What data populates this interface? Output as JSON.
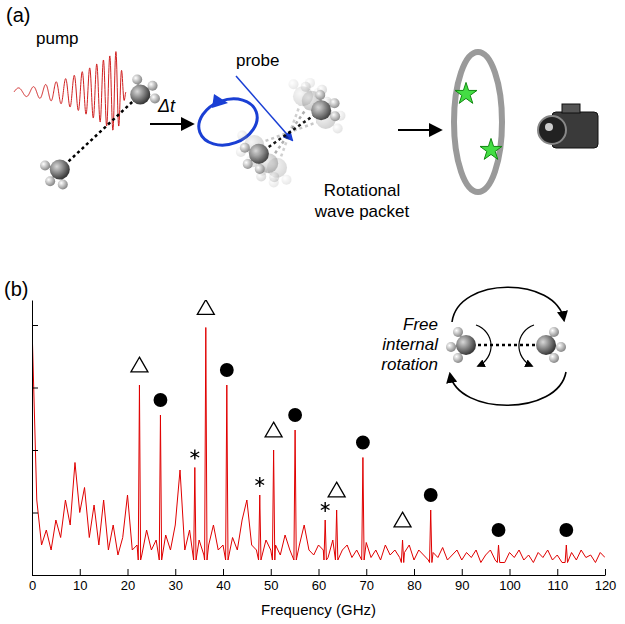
{
  "chart_data": {
    "type": "line",
    "panel_label": "(b)",
    "x_label": "Frequency (GHz)",
    "annotation_lines": [
      "Free",
      "internal",
      "rotation"
    ],
    "color": "#e00000",
    "grid": false,
    "tick_labels": "x",
    "xlim": [
      0,
      120
    ],
    "xticks": [
      0,
      10,
      20,
      30,
      40,
      50,
      60,
      70,
      80,
      90,
      100,
      110,
      120
    ],
    "ylim": [
      0,
      1.1
    ],
    "yticks": [
      0,
      0.25,
      0.5,
      0.75,
      1
    ],
    "x": [
      0,
      1,
      2,
      3,
      4,
      5,
      6,
      7,
      8,
      9,
      10,
      11,
      12,
      13,
      14,
      15,
      16,
      17,
      18,
      19,
      20,
      21,
      22,
      22.25,
      22.5,
      22.75,
      23,
      24,
      25,
      26,
      26.65,
      26.9,
      27.15,
      28,
      29,
      30,
      31,
      32,
      33,
      33.85,
      34.1,
      34.35,
      35,
      36,
      36.15,
      36.4,
      36.65,
      37,
      38,
      39,
      40,
      40.55,
      40.8,
      41.05,
      42,
      43,
      44,
      45,
      46,
      47,
      47.45,
      47.7,
      47.95,
      49,
      50,
      50.35,
      50.6,
      50.85,
      51,
      52,
      53,
      54,
      54.85,
      55.1,
      55.35,
      56,
      57,
      58,
      59,
      60,
      61,
      61.15,
      61.4,
      61.65,
      62,
      63,
      63.55,
      63.8,
      64.05,
      65,
      66,
      67,
      68,
      69.05,
      69.3,
      69.55,
      70,
      71,
      72,
      73,
      74,
      75,
      76,
      77,
      77.35,
      77.6,
      77.85,
      78,
      79,
      80,
      81,
      82,
      83,
      83.25,
      83.5,
      83.75,
      84,
      85,
      86,
      87,
      88,
      89,
      90,
      91,
      92,
      93,
      94,
      95,
      96,
      97,
      97.45,
      97.7,
      97.95,
      99,
      100,
      101,
      102,
      103,
      104,
      105,
      106,
      107,
      108,
      109,
      110,
      111,
      111.65,
      111.9,
      112.15,
      113,
      114,
      115,
      116,
      117,
      118,
      119,
      120
    ],
    "values": [
      1.0,
      0.3,
      0.12,
      0.18,
      0.1,
      0.22,
      0.15,
      0.3,
      0.2,
      0.45,
      0.25,
      0.35,
      0.15,
      0.28,
      0.12,
      0.3,
      0.1,
      0.2,
      0.08,
      0.15,
      0.32,
      0.1,
      0.12,
      0.06,
      0.76,
      0.06,
      0.08,
      0.18,
      0.1,
      0.14,
      0.06,
      0.64,
      0.06,
      0.16,
      0.1,
      0.2,
      0.42,
      0.1,
      0.18,
      0.06,
      0.43,
      0.06,
      0.14,
      0.08,
      0.06,
      0.99,
      0.06,
      0.12,
      0.2,
      0.1,
      0.12,
      0.06,
      0.76,
      0.06,
      0.15,
      0.1,
      0.22,
      0.3,
      0.12,
      0.1,
      0.06,
      0.32,
      0.06,
      0.14,
      0.1,
      0.06,
      0.5,
      0.06,
      0.12,
      0.08,
      0.16,
      0.1,
      0.06,
      0.58,
      0.06,
      0.12,
      0.2,
      0.1,
      0.08,
      0.12,
      0.1,
      0.06,
      0.22,
      0.06,
      0.07,
      0.14,
      0.06,
      0.26,
      0.06,
      0.1,
      0.12,
      0.07,
      0.1,
      0.06,
      0.47,
      0.06,
      0.13,
      0.07,
      0.1,
      0.06,
      0.12,
      0.08,
      0.1,
      0.07,
      0.05,
      0.14,
      0.05,
      0.09,
      0.12,
      0.06,
      0.1,
      0.08,
      0.06,
      0.05,
      0.26,
      0.05,
      0.09,
      0.07,
      0.11,
      0.06,
      0.08,
      0.1,
      0.06,
      0.09,
      0.07,
      0.1,
      0.05,
      0.08,
      0.1,
      0.06,
      0.05,
      0.12,
      0.05,
      0.05,
      0.09,
      0.07,
      0.1,
      0.06,
      0.08,
      0.05,
      0.09,
      0.07,
      0.1,
      0.06,
      0.08,
      0.05,
      0.05,
      0.12,
      0.05,
      0.09,
      0.06,
      0.1,
      0.07,
      0.08,
      0.05,
      0.09,
      0.07
    ],
    "peak_markers": [
      {
        "marker": "open-triangle",
        "color": "#000000",
        "x": [
          22.5,
          36.4,
          50.6,
          63.8,
          77.6
        ],
        "values": [
          0.76,
          0.99,
          0.5,
          0.26,
          0.14
        ]
      },
      {
        "marker": "filled-circle",
        "color": "#000000",
        "x": [
          26.9,
          40.8,
          55.1,
          69.3,
          83.5,
          97.7,
          111.9
        ],
        "values": [
          0.64,
          0.76,
          0.58,
          0.47,
          0.26,
          0.12,
          0.12
        ]
      },
      {
        "marker": "asterisk",
        "color": "#000000",
        "x": [
          34.1,
          47.7,
          61.4
        ],
        "values": [
          0.43,
          0.32,
          0.22
        ]
      }
    ]
  },
  "diagram": {
    "panel_label": "(a)",
    "pump": "pump",
    "delay": "Δt",
    "probe": "probe",
    "wave_packet_lines": [
      "Rotational",
      "wave packet"
    ]
  }
}
